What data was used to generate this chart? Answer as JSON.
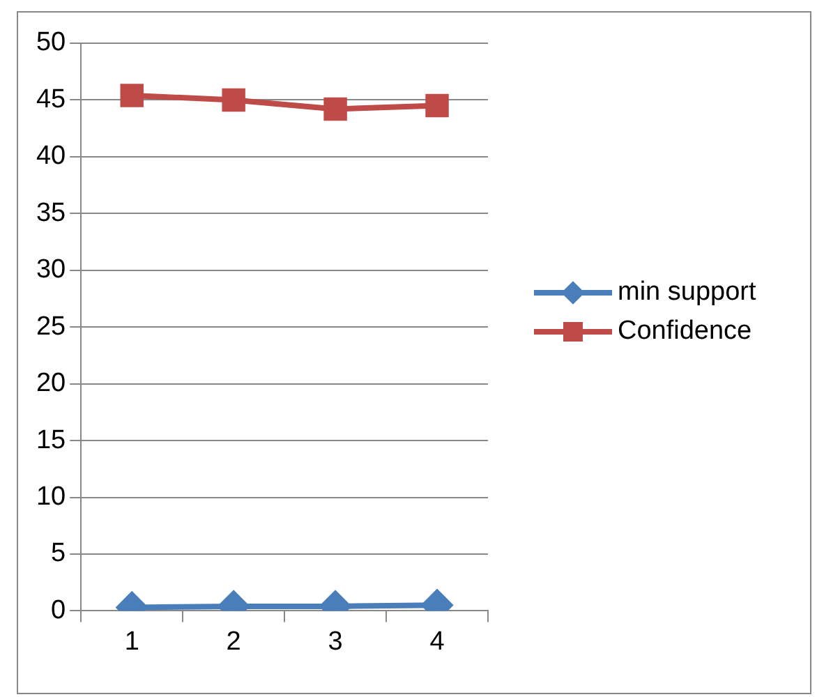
{
  "chart_data": {
    "type": "line",
    "categories": [
      "1",
      "2",
      "3",
      "4"
    ],
    "series": [
      {
        "name": "min support",
        "color": "#4a7ebb",
        "marker": "diamond",
        "values": [
          0.3,
          0.4,
          0.4,
          0.5
        ]
      },
      {
        "name": "Confidence",
        "color": "#be4b48",
        "marker": "square",
        "values": [
          45.4,
          45.0,
          44.2,
          44.5
        ]
      }
    ],
    "ylim": [
      0,
      50
    ],
    "yticks": [
      0,
      5,
      10,
      15,
      20,
      25,
      30,
      35,
      40,
      45,
      50
    ],
    "grid": "y",
    "legend": "right"
  }
}
